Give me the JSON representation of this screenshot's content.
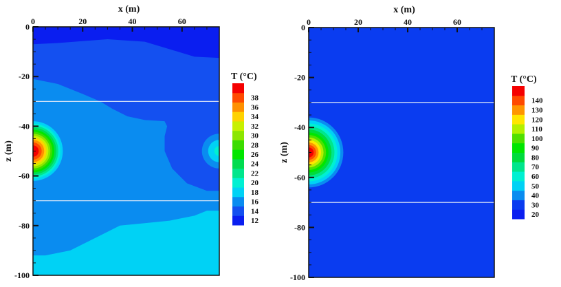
{
  "chart_data": [
    {
      "type": "heatmap",
      "subtype": "filled-contour",
      "xlabel": "x (m)",
      "ylabel": "z (m)",
      "xlim": [
        0,
        75
      ],
      "ylim": [
        -100,
        0
      ],
      "xticks": [
        0,
        20,
        40,
        60
      ],
      "yticks": [
        0,
        -20,
        -40,
        -60,
        -80,
        -100
      ],
      "x_axis_position": "top",
      "colorbar": {
        "title": "T (°C)",
        "levels": [
          12,
          14,
          16,
          18,
          20,
          22,
          24,
          26,
          28,
          30,
          32,
          34,
          36,
          38
        ],
        "colors": [
          "#0a1ef0",
          "#1450f0",
          "#0a8cf0",
          "#00d2f5",
          "#00f0d2",
          "#00e68c",
          "#00dc50",
          "#00e600",
          "#3cdc00",
          "#8ce600",
          "#c8f000",
          "#ffd200",
          "#ff9000",
          "#ff4a00",
          "#f50000"
        ],
        "placement": "right"
      },
      "horizontal_lines": [
        -30,
        -70
      ],
      "background_band": 0,
      "regions": [
        {
          "band": 1,
          "points": [
            [
              0,
              -7
            ],
            [
              10,
              -6.5
            ],
            [
              30,
              -5
            ],
            [
              45,
              -6
            ],
            [
              55,
              -9
            ],
            [
              65,
              -12
            ],
            [
              75,
              -12.5
            ],
            [
              75,
              -100
            ],
            [
              0,
              -100
            ]
          ]
        },
        {
          "band": 2,
          "points": [
            [
              0,
              -21
            ],
            [
              10,
              -23
            ],
            [
              20,
              -27
            ],
            [
              27,
              -30
            ],
            [
              32,
              -33
            ],
            [
              38,
              -36
            ],
            [
              45,
              -37.5
            ],
            [
              53,
              -38
            ],
            [
              54,
              -40
            ],
            [
              75,
              -40
            ],
            [
              75,
              -100
            ],
            [
              0,
              -100
            ]
          ]
        },
        {
          "band": 1,
          "points": [
            [
              54,
              -40
            ],
            [
              53,
              -44
            ],
            [
              53,
              -50
            ],
            [
              56,
              -57
            ],
            [
              62,
              -63
            ],
            [
              70,
              -66
            ],
            [
              75,
              -66
            ],
            [
              75,
              -38
            ],
            [
              53,
              -38
            ]
          ]
        },
        {
          "band": 3,
          "points": [
            [
              0,
              -92
            ],
            [
              5,
              -92
            ],
            [
              15,
              -90
            ],
            [
              25,
              -85
            ],
            [
              35,
              -80
            ],
            [
              45,
              -79
            ],
            [
              55,
              -78
            ],
            [
              65,
              -76
            ],
            [
              70,
              -74
            ],
            [
              75,
              -74
            ],
            [
              75,
              -100
            ],
            [
              0,
              -100
            ]
          ]
        }
      ],
      "hot_spots": [
        {
          "center": [
            0,
            -50
          ],
          "rings": [
            [
              3,
              12
            ],
            [
              4,
              11
            ],
            [
              5,
              10.2
            ],
            [
              6,
              9.4
            ],
            [
              7,
              8.6
            ],
            [
              8,
              7.8
            ],
            [
              9,
              7
            ],
            [
              10,
              6.2
            ],
            [
              11,
              5.4
            ],
            [
              12,
              4.5
            ],
            [
              13,
              3.5
            ],
            [
              14,
              2.3
            ]
          ]
        },
        {
          "center": [
            75,
            -50
          ],
          "rings": [
            [
              2,
              7
            ],
            [
              3,
              4.5
            ],
            [
              4,
              2
            ]
          ]
        }
      ]
    },
    {
      "type": "heatmap",
      "subtype": "filled-contour",
      "xlabel": "x (m)",
      "ylabel": "z (m)",
      "xlim": [
        0,
        75
      ],
      "ylim": [
        -100,
        0
      ],
      "xticks": [
        0,
        20,
        40,
        60
      ],
      "yticks": [
        0,
        -20,
        -40,
        -60,
        -80,
        -100
      ],
      "x_axis_position": "top",
      "colorbar": {
        "title": "T (°C)",
        "levels": [
          20,
          30,
          40,
          50,
          60,
          70,
          80,
          90,
          100,
          110,
          120,
          130,
          140
        ],
        "colors": [
          "#0a1ef0",
          "#0a3cf0",
          "#0a8cf0",
          "#00d2f5",
          "#00f0d2",
          "#00e68c",
          "#00dc3c",
          "#00e600",
          "#50e000",
          "#b4f000",
          "#ffe600",
          "#ff9600",
          "#ff4a00",
          "#f50000"
        ],
        "placement": "right"
      },
      "horizontal_lines": [
        -30,
        -70
      ],
      "background_band": 1,
      "regions": [],
      "hot_spots": [
        {
          "center": [
            0,
            -50
          ],
          "rings": [
            [
              2,
              14
            ],
            [
              3,
              12.8
            ],
            [
              4,
              11.6
            ],
            [
              5,
              10.4
            ],
            [
              6,
              9.2
            ],
            [
              7,
              8
            ],
            [
              8,
              7
            ],
            [
              9,
              6
            ],
            [
              10,
              5
            ],
            [
              11,
              4
            ],
            [
              12,
              3
            ],
            [
              13,
              2
            ]
          ]
        }
      ]
    }
  ]
}
